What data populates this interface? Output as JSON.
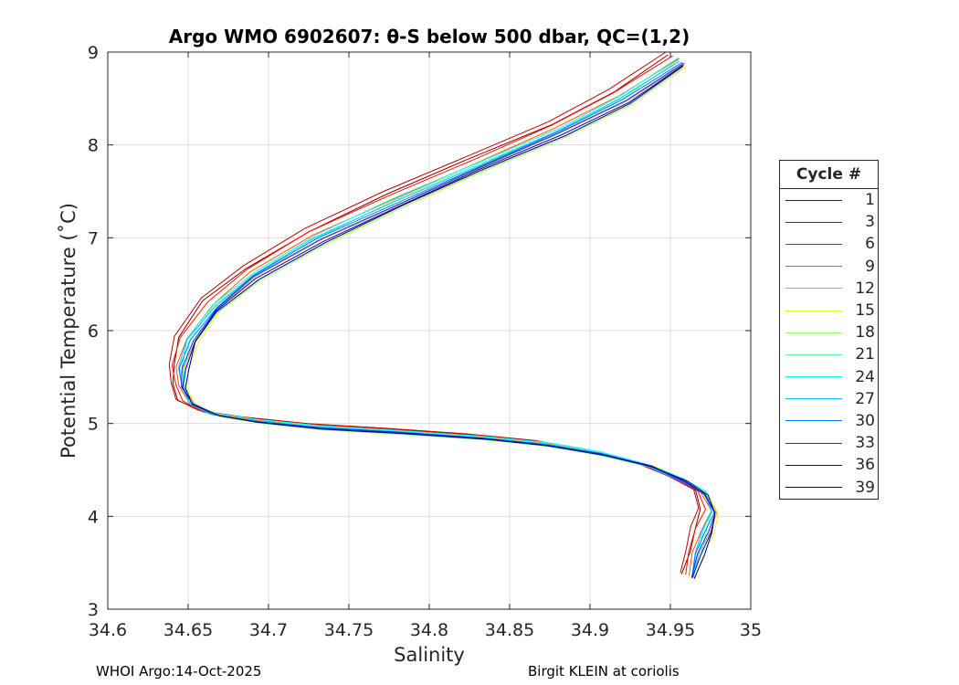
{
  "chart_data": {
    "type": "line",
    "title": "Argo WMO 6902607: θ-S below 500 dbar,  QC=(1,2)",
    "xlabel": "Salinity",
    "ylabel": "Potential Temperature (˚C)",
    "xlim": [
      34.6,
      35.0
    ],
    "ylim": [
      3,
      9
    ],
    "xticks": [
      34.6,
      34.65,
      34.7,
      34.75,
      34.8,
      34.85,
      34.9,
      34.95,
      35
    ],
    "xtick_labels": [
      "34.6",
      "34.65",
      "34.7",
      "34.75",
      "34.8",
      "34.85",
      "34.9",
      "34.95",
      "35"
    ],
    "yticks": [
      3,
      4,
      5,
      6,
      7,
      8,
      9
    ],
    "ytick_labels": [
      "3",
      "4",
      "5",
      "6",
      "7",
      "8",
      "9"
    ],
    "grid": true,
    "legend_title": "Cycle #",
    "legend_position": "right",
    "base_curve": {
      "salinity": [
        34.962,
        34.966,
        34.971,
        34.975,
        34.97,
        34.955,
        34.935,
        34.905,
        34.87,
        34.83,
        34.78,
        34.73,
        34.69,
        34.665,
        34.65,
        34.645,
        34.645,
        34.65,
        34.665,
        34.69,
        34.73,
        34.78,
        34.83,
        34.88,
        34.92,
        34.955
      ],
      "temperature": [
        3.35,
        3.6,
        3.85,
        4.05,
        4.25,
        4.4,
        4.55,
        4.68,
        4.78,
        4.85,
        4.91,
        4.96,
        5.03,
        5.1,
        5.22,
        5.4,
        5.6,
        5.9,
        6.25,
        6.6,
        7.0,
        7.4,
        7.78,
        8.15,
        8.5,
        8.9
      ]
    },
    "series": [
      {
        "name": "1",
        "color": "#800000",
        "sal_offset": -0.005,
        "temp_offset": 0.07
      },
      {
        "name": "3",
        "color": "#c40000",
        "sal_offset": -0.007,
        "temp_offset": 0.1
      },
      {
        "name": "6",
        "color": "#ff0c00",
        "sal_offset": -0.004,
        "temp_offset": 0.06
      },
      {
        "name": "9",
        "color": "#ff5400",
        "sal_offset": -0.001,
        "temp_offset": 0.03
      },
      {
        "name": "12",
        "color": "#ff9c00",
        "sal_offset": 0.003,
        "temp_offset": -0.02
      },
      {
        "name": "15",
        "color": "#e4ff1b",
        "sal_offset": 0.005,
        "temp_offset": -0.05
      },
      {
        "name": "18",
        "color": "#9cff63",
        "sal_offset": 0.004,
        "temp_offset": -0.07
      },
      {
        "name": "21",
        "color": "#54ffab",
        "sal_offset": 0.002,
        "temp_offset": 0.02
      },
      {
        "name": "24",
        "color": "#0cfff3",
        "sal_offset": 0.001,
        "temp_offset": 0.04
      },
      {
        "name": "27",
        "color": "#00c4ff",
        "sal_offset": 0.0,
        "temp_offset": 0.0
      },
      {
        "name": "30",
        "color": "#007cff",
        "sal_offset": 0.001,
        "temp_offset": -0.01
      },
      {
        "name": "33",
        "color": "#0034ff",
        "sal_offset": 0.002,
        "temp_offset": -0.02
      },
      {
        "name": "36",
        "color": "#0000d8",
        "sal_offset": 0.003,
        "temp_offset": -0.04
      },
      {
        "name": "39",
        "color": "#000090",
        "sal_offset": 0.004,
        "temp_offset": -0.05
      }
    ]
  },
  "footer": {
    "left": "WHOI Argo:14-Oct-2025",
    "right": "Birgit KLEIN at coriolis"
  }
}
